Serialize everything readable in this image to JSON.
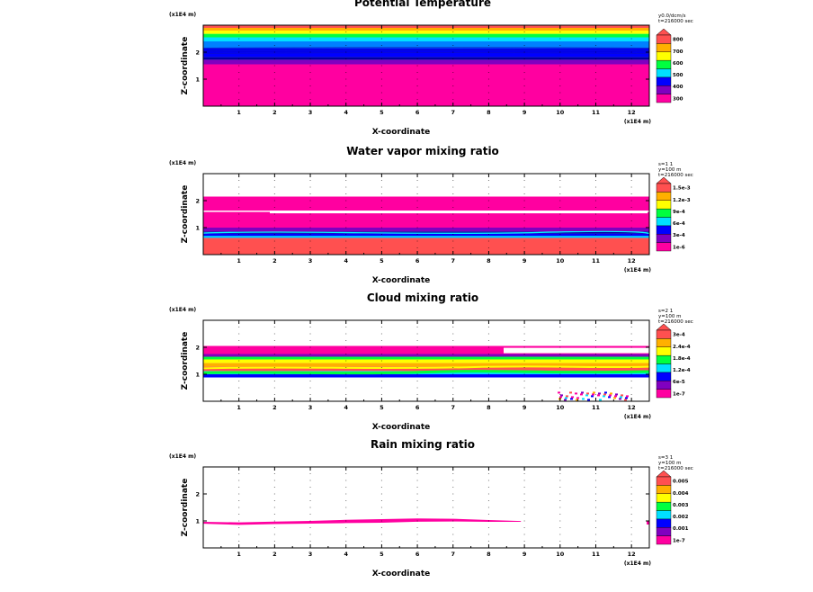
{
  "figure_name": "Model output panels",
  "chart_data": [
    {
      "type": "heatmap",
      "title": "Potential Temperature",
      "xlabel": "X-coordinate",
      "ylabel": "Z-coordinate",
      "x_unit": "(x1E4 m)",
      "y_unit": "(x1E4 m)",
      "x_ticks": [
        "1",
        "2",
        "3",
        "4",
        "5",
        "6",
        "7",
        "8",
        "9",
        "10",
        "11",
        "12"
      ],
      "y_ticks": [
        "1",
        "2"
      ],
      "xlim": [
        0,
        12.5
      ],
      "ylim": [
        0,
        3.0
      ],
      "info": [
        "y0.0/dcm/s",
        "t=216000 sec"
      ],
      "colorbar_labels": [
        "300",
        "400",
        "500",
        "600",
        "700",
        "800"
      ],
      "colorbar_colors": [
        "#ff00a0",
        "#8000c0",
        "#0000ff",
        "#00e0ff",
        "#00ff40",
        "#ffff00",
        "#ffb000",
        "#ff5050"
      ],
      "bands": [
        {
          "z0": 0.0,
          "z1": 1.55,
          "color": "#ff00a0"
        },
        {
          "z0": 1.55,
          "z1": 1.72,
          "color": "#8000c0"
        },
        {
          "z0": 1.72,
          "z1": 1.82,
          "color": "#0000a0"
        },
        {
          "z0": 1.82,
          "z1": 2.15,
          "color": "#0000ff"
        },
        {
          "z0": 2.15,
          "z1": 2.4,
          "color": "#0080ff"
        },
        {
          "z0": 2.4,
          "z1": 2.55,
          "color": "#00e0ff"
        },
        {
          "z0": 2.55,
          "z1": 2.68,
          "color": "#00ff40"
        },
        {
          "z0": 2.68,
          "z1": 2.8,
          "color": "#ffff00"
        },
        {
          "z0": 2.8,
          "z1": 2.9,
          "color": "#ffb000"
        },
        {
          "z0": 2.9,
          "z1": 3.0,
          "color": "#ff5050"
        }
      ]
    },
    {
      "type": "heatmap",
      "title": "Water vapor mixing ratio",
      "xlabel": "X-coordinate",
      "ylabel": "Z-coordinate",
      "x_unit": "(x1E4 m)",
      "y_unit": "(x1E4 m)",
      "x_ticks": [
        "1",
        "2",
        "3",
        "4",
        "5",
        "6",
        "7",
        "8",
        "9",
        "10",
        "11",
        "12"
      ],
      "y_ticks": [
        "1",
        "2"
      ],
      "xlim": [
        0,
        12.5
      ],
      "ylim": [
        0,
        3.0
      ],
      "info": [
        "s=1 1",
        "y=100 m",
        "t=216000 sec"
      ],
      "colorbar_labels": [
        "1e-6",
        "3e-4",
        "6e-4",
        "9e-4",
        "1.2e-3",
        "1.5e-3"
      ],
      "colorbar_colors": [
        "#ff00a0",
        "#8000c0",
        "#0000ff",
        "#00e0ff",
        "#00ff40",
        "#ffff00",
        "#ffb000",
        "#ff5050"
      ],
      "bands": [
        {
          "z0": 0.0,
          "z1": 0.62,
          "color": "#ff5050"
        },
        {
          "z0": 0.62,
          "z1": 0.7,
          "color": "#00c0ff"
        },
        {
          "z0": 0.7,
          "z1": 0.78,
          "color": "#0000ff"
        },
        {
          "z0": 0.78,
          "z1": 0.86,
          "color": "#0000a0"
        },
        {
          "z0": 0.86,
          "z1": 1.0,
          "color": "#8000c0"
        },
        {
          "z0": 1.0,
          "z1": 1.58,
          "color": "#ff00a0"
        },
        {
          "z0": 1.63,
          "z1": 2.15,
          "color": "#ff00a0"
        }
      ]
    },
    {
      "type": "heatmap",
      "title": "Cloud mixing ratio",
      "xlabel": "X-coordinate",
      "ylabel": "Z-coordinate",
      "x_unit": "(x1E4 m)",
      "y_unit": "(x1E4 m)",
      "x_ticks": [
        "1",
        "2",
        "3",
        "4",
        "5",
        "6",
        "7",
        "8",
        "9",
        "10",
        "11",
        "12"
      ],
      "y_ticks": [
        "1",
        "2"
      ],
      "xlim": [
        0,
        12.5
      ],
      "ylim": [
        0,
        3.0
      ],
      "info": [
        "s=2 1",
        "y=100 m",
        "t=216000 sec"
      ],
      "colorbar_labels": [
        "1e-7",
        "6e-5",
        "1.2e-4",
        "1.8e-4",
        "2.4e-4",
        "3e-4"
      ],
      "colorbar_colors": [
        "#ff00a0",
        "#8000c0",
        "#0000ff",
        "#00e0ff",
        "#00ff40",
        "#ffff00",
        "#ffb000",
        "#ff5050"
      ],
      "bands": [
        {
          "z0": 0.88,
          "z1": 1.0,
          "color": "#0000ff"
        },
        {
          "z0": 1.0,
          "z1": 1.12,
          "color": "#00e0ff"
        },
        {
          "z0": 1.12,
          "z1": 1.28,
          "color": "#ff5050"
        },
        {
          "z0": 1.28,
          "z1": 1.42,
          "color": "#ffb000"
        },
        {
          "z0": 1.42,
          "z1": 1.55,
          "color": "#ffff00"
        },
        {
          "z0": 1.55,
          "z1": 1.65,
          "color": "#00ff40"
        },
        {
          "z0": 1.65,
          "z1": 1.75,
          "color": "#8000c0"
        },
        {
          "z0": 1.75,
          "z1": 2.05,
          "color": "#ff00a0"
        }
      ]
    },
    {
      "type": "heatmap",
      "title": "Rain mixing ratio",
      "xlabel": "X-coordinate",
      "ylabel": "Z-coordinate",
      "x_unit": "(x1E4 m)",
      "y_unit": "(x1E4 m)",
      "x_ticks": [
        "1",
        "2",
        "3",
        "4",
        "5",
        "6",
        "7",
        "8",
        "9",
        "10",
        "11",
        "12"
      ],
      "y_ticks": [
        "1",
        "2"
      ],
      "xlim": [
        0,
        12.5
      ],
      "ylim": [
        0,
        3.0
      ],
      "info": [
        "s=3 1",
        "y=100 m",
        "t=216000 sec"
      ],
      "colorbar_labels": [
        "1e-7",
        "0.001",
        "0.002",
        "0.003",
        "0.004",
        "0.005"
      ],
      "colorbar_colors": [
        "#ff00a0",
        "#8000c0",
        "#0000ff",
        "#00e0ff",
        "#00ff40",
        "#ffff00",
        "#ffb000",
        "#ff5050"
      ],
      "bands": []
    }
  ]
}
